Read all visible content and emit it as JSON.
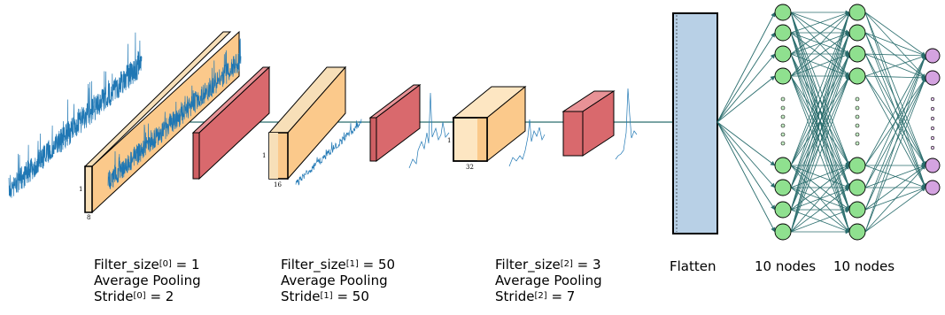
{
  "layers": [
    {
      "filter_prefix": "Filter_size",
      "filter_sup": "[0]",
      "filter_value": " = 1",
      "pooling": "Average Pooling",
      "stride_prefix": "Stride",
      "stride_sup": "[0]",
      "stride_value": " = 2",
      "dim_height": "1",
      "dim_depth": "8"
    },
    {
      "filter_prefix": "Filter_size",
      "filter_sup": "[1]",
      "filter_value": " = 50",
      "pooling": "Average Pooling",
      "stride_prefix": "Stride",
      "stride_sup": "[1]",
      "stride_value": " = 50",
      "dim_height": "1",
      "dim_depth": "16"
    },
    {
      "filter_prefix": "Filter_size",
      "filter_sup": "[2]",
      "filter_value": " = 3",
      "pooling": "Average Pooling",
      "stride_prefix": "Stride",
      "stride_sup": "[2]",
      "stride_value": " = 7",
      "dim_height": "1",
      "dim_depth": "32"
    }
  ],
  "flatten_label": "Flatten",
  "dense_labels": [
    "10 nodes",
    "10 nodes"
  ],
  "colors": {
    "signal": "#1f77b4",
    "conv_box": "#fbc98b",
    "pool_box": "#d9696d",
    "flatten": "#b8d0e6",
    "hidden_node": "#8fe08f",
    "output_node": "#d4a3e0",
    "edge": "#2a6d6d"
  }
}
